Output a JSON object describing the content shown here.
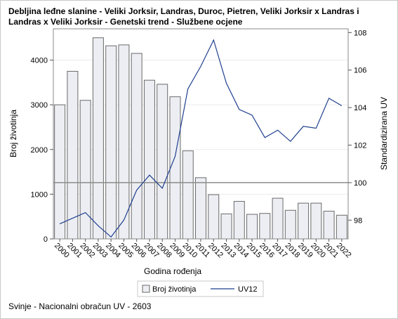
{
  "chart_data": {
    "type": "bar",
    "title": "Debljina leđne slanine - Veliki Jorksir, Landras, Duroc, Pietren, Veliki Jorksir x Landras i Landras x Veliki Jorksir - Genetski trend - Službene ocjene",
    "xlabel": "Godina rođenja",
    "ylabel": "Broj životinja",
    "y2label": "Standardizirana UV",
    "categories": [
      "2000",
      "2001",
      "2002",
      "2003",
      "2004",
      "2005",
      "2006",
      "2007",
      "2008",
      "2009",
      "2010",
      "2011",
      "2012",
      "2013",
      "2014",
      "2015",
      "2016",
      "2017",
      "2018",
      "2019",
      "2020",
      "2021",
      "2022"
    ],
    "series": [
      {
        "name": "Broj životinja",
        "type": "bar",
        "axis": "left",
        "values": [
          3000,
          3750,
          3100,
          4500,
          4320,
          4340,
          4150,
          3550,
          3460,
          3180,
          1970,
          1370,
          990,
          560,
          840,
          550,
          570,
          910,
          640,
          800,
          800,
          620,
          530
        ]
      },
      {
        "name": "UV12",
        "type": "line",
        "axis": "right",
        "values": [
          97.8,
          98.1,
          98.4,
          97.7,
          97.1,
          98.0,
          99.6,
          100.4,
          99.7,
          101.4,
          105.0,
          106.2,
          107.6,
          105.3,
          103.9,
          103.6,
          102.4,
          102.8,
          102.2,
          103.0,
          102.9,
          104.5,
          104.1
        ]
      }
    ],
    "ylim": [
      0,
      4700
    ],
    "yticks": [
      0,
      1000,
      2000,
      3000,
      4000
    ],
    "y2lim": [
      97,
      108.2
    ],
    "y2ticks": [
      98,
      100,
      102,
      104,
      106,
      108
    ],
    "reference_line_y2": 100,
    "grid": "horizontal",
    "legend": {
      "position": "bottom",
      "entries": [
        "Broj životinja",
        "UV12"
      ]
    },
    "colors": {
      "bar_fill": "#eceef3",
      "bar_stroke": "#6a6a6a",
      "line": "#1f3f8f",
      "ref_line": "#8c8c8c",
      "grid": "#ececec"
    }
  },
  "footer": "Svinje - Nacionalni obračun UV - 2603"
}
